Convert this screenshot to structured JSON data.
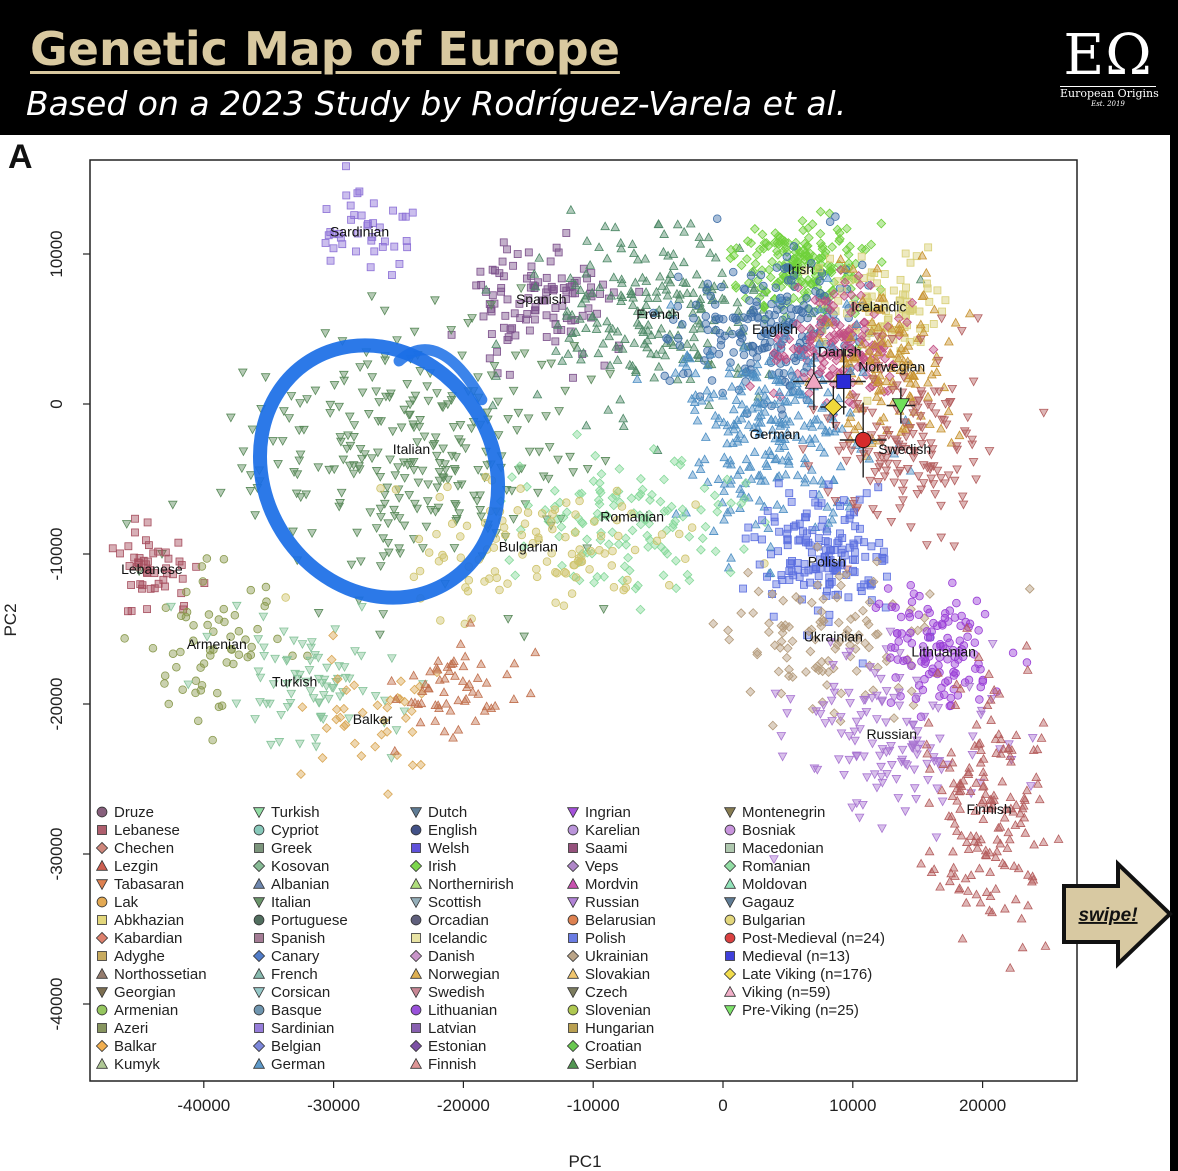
{
  "header": {
    "title": "Genetic Map of Europe",
    "subtitle": "Based on a 2023 Study by Rodríguez-Varela et al.",
    "logo_mark": "EΩ",
    "logo_name": "European Origins",
    "logo_est": "Est. 2019",
    "panel_letter": "A"
  },
  "swipe_label": "swipe!",
  "colors": {
    "banner": "#000000",
    "title": "#d9c9a0",
    "highlight_ring": "#1a6ee6",
    "swipe_fill": "#d8c9a2"
  },
  "chart_data": {
    "type": "scatter",
    "xlabel": "PC1",
    "ylabel": "PC2",
    "xlim": [
      -48000,
      27000
    ],
    "ylim": [
      -45000,
      16000
    ],
    "xticks": [
      -40000,
      -30000,
      -20000,
      -10000,
      0,
      10000,
      20000
    ],
    "yticks": [
      10000,
      0,
      -10000,
      -20000,
      -30000,
      -40000
    ],
    "grid": false,
    "legend_position": "bottom-left inside plot",
    "highlight": {
      "shape": "ellipse",
      "around": "Italian",
      "cx": -26500,
      "cy": -4500,
      "rx": 8800,
      "ry": 8700,
      "angle": -32
    },
    "clusters": [
      {
        "label": "Sardinian",
        "x": -28000,
        "y": 11500,
        "sx": 2000,
        "sy": 1300,
        "n": 40,
        "color": "#8b6fd6",
        "shape": "square"
      },
      {
        "label": "Spanish",
        "x": -14000,
        "y": 7000,
        "sx": 3000,
        "sy": 2000,
        "n": 110,
        "color": "#7b4f8a",
        "shape": "square"
      },
      {
        "label": "French",
        "x": -5000,
        "y": 6000,
        "sx": 5000,
        "sy": 2800,
        "n": 220,
        "color": "#4f8a68",
        "shape": "triangle-up"
      },
      {
        "label": "Italian",
        "x": -24000,
        "y": -3000,
        "sx": 6500,
        "sy": 4500,
        "n": 280,
        "color": "#5a8a5a",
        "shape": "triangle-down"
      },
      {
        "label": "Irish",
        "x": 6000,
        "y": 9000,
        "sx": 2500,
        "sy": 1600,
        "n": 200,
        "color": "#6fd13a",
        "shape": "diamond"
      },
      {
        "label": "English",
        "x": 4000,
        "y": 5000,
        "sx": 3500,
        "sy": 2200,
        "n": 220,
        "color": "#3f6fa8",
        "shape": "circle"
      },
      {
        "label": "Icelandic",
        "x": 12000,
        "y": 6500,
        "sx": 2500,
        "sy": 2000,
        "n": 100,
        "color": "#d8cf74",
        "shape": "square"
      },
      {
        "label": "Danish",
        "x": 9000,
        "y": 3500,
        "sx": 2300,
        "sy": 2000,
        "n": 150,
        "color": "#c24e82",
        "shape": "diamond"
      },
      {
        "label": "Norwegian",
        "x": 13000,
        "y": 2500,
        "sx": 2400,
        "sy": 2600,
        "n": 130,
        "color": "#c79330",
        "shape": "triangle-up"
      },
      {
        "label": "German",
        "x": 4000,
        "y": -2000,
        "sx": 4000,
        "sy": 3500,
        "n": 260,
        "color": "#4d8fc4",
        "shape": "triangle-up"
      },
      {
        "label": "Swedish",
        "x": 14000,
        "y": -3000,
        "sx": 2800,
        "sy": 3000,
        "n": 150,
        "color": "#b35e5e",
        "shape": "triangle-down"
      },
      {
        "label": "Romanian",
        "x": -7000,
        "y": -7500,
        "sx": 5000,
        "sy": 2200,
        "n": 130,
        "color": "#86d99a",
        "shape": "diamond"
      },
      {
        "label": "Bulgarian",
        "x": -15000,
        "y": -9500,
        "sx": 5500,
        "sy": 2000,
        "n": 110,
        "color": "#cfc46c",
        "shape": "circle"
      },
      {
        "label": "Polish",
        "x": 8000,
        "y": -10500,
        "sx": 2500,
        "sy": 2200,
        "n": 160,
        "color": "#5a6ee0",
        "shape": "square"
      },
      {
        "label": "Ukrainian",
        "x": 8500,
        "y": -15500,
        "sx": 4000,
        "sy": 2500,
        "n": 110,
        "color": "#b39a7a",
        "shape": "diamond"
      },
      {
        "label": "Lithuanian",
        "x": 17000,
        "y": -16500,
        "sx": 2300,
        "sy": 2000,
        "n": 120,
        "color": "#9a3fd6",
        "shape": "circle"
      },
      {
        "label": "Russian",
        "x": 13000,
        "y": -22000,
        "sx": 4000,
        "sy": 3000,
        "n": 130,
        "color": "#a874d1",
        "shape": "triangle-down"
      },
      {
        "label": "Finnish",
        "x": 20500,
        "y": -27000,
        "sx": 2200,
        "sy": 4000,
        "n": 170,
        "color": "#b55e5e",
        "shape": "triangle-up"
      },
      {
        "label": "Lebanese",
        "x": -44000,
        "y": -11000,
        "sx": 1800,
        "sy": 1500,
        "n": 50,
        "color": "#a64e5e",
        "shape": "square"
      },
      {
        "label": "Armenian",
        "x": -39000,
        "y": -16000,
        "sx": 2500,
        "sy": 2200,
        "n": 60,
        "color": "#8a9a4e",
        "shape": "circle"
      },
      {
        "label": "Turkish",
        "x": -33000,
        "y": -18500,
        "sx": 3500,
        "sy": 2000,
        "n": 80,
        "color": "#86c49a",
        "shape": "triangle-down"
      },
      {
        "label": "Balkar",
        "x": -27000,
        "y": -21000,
        "sx": 2500,
        "sy": 2000,
        "n": 40,
        "color": "#d9a653",
        "shape": "diamond"
      },
      {
        "label": "",
        "x": -21000,
        "y": -19000,
        "sx": 2500,
        "sy": 1600,
        "n": 60,
        "color": "#c1704e",
        "shape": "triangle-up"
      }
    ],
    "ancient_samples": [
      {
        "label": "Post-Medieval (n=24)",
        "x": 10800,
        "y": -2400,
        "ex": 1800,
        "ey": 2500,
        "color": "#d62b2b",
        "shape": "circle"
      },
      {
        "label": "Medieval (n=13)",
        "x": 9300,
        "y": 1500,
        "ex": 1700,
        "ey": 2200,
        "color": "#2b2bd6",
        "shape": "square"
      },
      {
        "label": "Late Viking (n=176)",
        "x": 8500,
        "y": -200,
        "ex": 1000,
        "ey": 1400,
        "color": "#f0d83a",
        "shape": "diamond"
      },
      {
        "label": "Viking (n=59)",
        "x": 7000,
        "y": 1500,
        "ex": 1600,
        "ey": 1900,
        "color": "#f0a6c2",
        "shape": "triangle-up"
      },
      {
        "label": "Pre-Viking (n=25)",
        "x": 13700,
        "y": -100,
        "ex": 1100,
        "ey": 1200,
        "color": "#6fe05a",
        "shape": "triangle-down"
      }
    ],
    "legend": [
      [
        {
          "label": "Druze",
          "color": "#7a4e6e",
          "shape": "circle"
        },
        {
          "label": "Lebanese",
          "color": "#a64e5e",
          "shape": "square"
        },
        {
          "label": "Chechen",
          "color": "#c97a6e",
          "shape": "diamond"
        },
        {
          "label": "Lezgin",
          "color": "#c74e3e",
          "shape": "triangle-up"
        },
        {
          "label": "Tabasaran",
          "color": "#d9733e",
          "shape": "triangle-down"
        },
        {
          "label": "Lak",
          "color": "#e0a040",
          "shape": "circle"
        },
        {
          "label": "Abkhazian",
          "color": "#e0d36e",
          "shape": "square"
        },
        {
          "label": "Kabardian",
          "color": "#d9735e",
          "shape": "diamond"
        },
        {
          "label": "Adyghe",
          "color": "#c2a24e",
          "shape": "square"
        },
        {
          "label": "Northossetian",
          "color": "#8a6e5e",
          "shape": "triangle-up"
        },
        {
          "label": "Georgian",
          "color": "#6e5e3e",
          "shape": "triangle-down"
        },
        {
          "label": "Armenian",
          "color": "#8ac04e",
          "shape": "circle"
        },
        {
          "label": "Azeri",
          "color": "#7a8a4e",
          "shape": "square"
        },
        {
          "label": "Balkar",
          "color": "#f0a63e",
          "shape": "diamond"
        },
        {
          "label": "Kumyk",
          "color": "#a6c28a",
          "shape": "triangle-up"
        }
      ],
      [
        {
          "label": "Turkish",
          "color": "#86d99a",
          "shape": "triangle-down"
        },
        {
          "label": "Cypriot",
          "color": "#7ac2b2",
          "shape": "circle"
        },
        {
          "label": "Greek",
          "color": "#6e8a6e",
          "shape": "square"
        },
        {
          "label": "Kosovan",
          "color": "#7ab28a",
          "shape": "diamond"
        },
        {
          "label": "Albanian",
          "color": "#5e7aa6",
          "shape": "triangle-up"
        },
        {
          "label": "Italian",
          "color": "#5a8a5a",
          "shape": "triangle-down"
        },
        {
          "label": "Portuguese",
          "color": "#3e5e4e",
          "shape": "circle"
        },
        {
          "label": "Spanish",
          "color": "#9a6e8a",
          "shape": "square"
        },
        {
          "label": "Canary",
          "color": "#3e6ec2",
          "shape": "diamond"
        },
        {
          "label": "French",
          "color": "#7ab2a6",
          "shape": "triangle-up"
        },
        {
          "label": "Corsican",
          "color": "#8ac2c2",
          "shape": "triangle-down"
        },
        {
          "label": "Basque",
          "color": "#5e8aa6",
          "shape": "circle"
        },
        {
          "label": "Sardinian",
          "color": "#8b6fd6",
          "shape": "square"
        },
        {
          "label": "Belgian",
          "color": "#6e7ad6",
          "shape": "diamond"
        },
        {
          "label": "German",
          "color": "#4d8fc4",
          "shape": "triangle-up"
        }
      ],
      [
        {
          "label": "Dutch",
          "color": "#4e6e8a",
          "shape": "triangle-down"
        },
        {
          "label": "English",
          "color": "#2e3e7a",
          "shape": "circle"
        },
        {
          "label": "Welsh",
          "color": "#4e3ed6",
          "shape": "square"
        },
        {
          "label": "Irish",
          "color": "#6fd13a",
          "shape": "diamond"
        },
        {
          "label": "Northernirish",
          "color": "#a6d96e",
          "shape": "triangle-up"
        },
        {
          "label": "Scottish",
          "color": "#8aa6b2",
          "shape": "triangle-down"
        },
        {
          "label": "Orcadian",
          "color": "#4e4e6e",
          "shape": "circle"
        },
        {
          "label": "Icelandic",
          "color": "#e6e09a",
          "shape": "square"
        },
        {
          "label": "Danish",
          "color": "#c28ac2",
          "shape": "diamond"
        },
        {
          "label": "Norwegian",
          "color": "#d9a63e",
          "shape": "triangle-up"
        },
        {
          "label": "Swedish",
          "color": "#c27a8a",
          "shape": "triangle-down"
        },
        {
          "label": "Lithuanian",
          "color": "#8e3ed6",
          "shape": "circle"
        },
        {
          "label": "Latvian",
          "color": "#7a4ea6",
          "shape": "square"
        },
        {
          "label": "Estonian",
          "color": "#6e3e9a",
          "shape": "diamond"
        },
        {
          "label": "Finnish",
          "color": "#d98a8a",
          "shape": "triangle-up"
        }
      ],
      [
        {
          "label": "Ingrian",
          "color": "#9a3ed6",
          "shape": "triangle-down"
        },
        {
          "label": "Karelian",
          "color": "#b28ad6",
          "shape": "circle"
        },
        {
          "label": "Saami",
          "color": "#8a3e6e",
          "shape": "square"
        },
        {
          "label": "Veps",
          "color": "#a67ac2",
          "shape": "diamond"
        },
        {
          "label": "Mordvin",
          "color": "#c23ea6",
          "shape": "triangle-up"
        },
        {
          "label": "Russian",
          "color": "#a874d1",
          "shape": "triangle-down"
        },
        {
          "label": "Belarusian",
          "color": "#d9733e",
          "shape": "circle"
        },
        {
          "label": "Polish",
          "color": "#5a6ee0",
          "shape": "square"
        },
        {
          "label": "Ukrainian",
          "color": "#b39a7a",
          "shape": "diamond"
        },
        {
          "label": "Slovakian",
          "color": "#f0c05e",
          "shape": "triangle-up"
        },
        {
          "label": "Czech",
          "color": "#6e6e4e",
          "shape": "triangle-down"
        },
        {
          "label": "Slovenian",
          "color": "#a6c23e",
          "shape": "circle"
        },
        {
          "label": "Hungarian",
          "color": "#b2963e",
          "shape": "square"
        },
        {
          "label": "Croatian",
          "color": "#5ac23e",
          "shape": "diamond"
        },
        {
          "label": "Serbian",
          "color": "#3e8a3e",
          "shape": "triangle-up"
        }
      ],
      [
        {
          "label": "Montenegrin",
          "color": "#7a6e3e",
          "shape": "triangle-down"
        },
        {
          "label": "Bosniak",
          "color": "#c28ad9",
          "shape": "circle"
        },
        {
          "label": "Macedonian",
          "color": "#a6c2a6",
          "shape": "square"
        },
        {
          "label": "Romanian",
          "color": "#86d99a",
          "shape": "diamond"
        },
        {
          "label": "Moldovan",
          "color": "#86e0b2",
          "shape": "triangle-up"
        },
        {
          "label": "Gagauz",
          "color": "#4e6e8a",
          "shape": "triangle-down"
        },
        {
          "label": "Bulgarian",
          "color": "#e0d36e",
          "shape": "circle"
        },
        {
          "label": "Post-Medieval (n=24)",
          "color": "#d62b2b",
          "shape": "circle"
        },
        {
          "label": "Medieval (n=13)",
          "color": "#2b2bd6",
          "shape": "square"
        },
        {
          "label": "Late Viking (n=176)",
          "color": "#f0d83a",
          "shape": "diamond"
        },
        {
          "label": "Viking (n=59)",
          "color": "#f0a6c2",
          "shape": "triangle-up"
        },
        {
          "label": "Pre-Viking (n=25)",
          "color": "#6fe05a",
          "shape": "triangle-down"
        }
      ]
    ]
  }
}
